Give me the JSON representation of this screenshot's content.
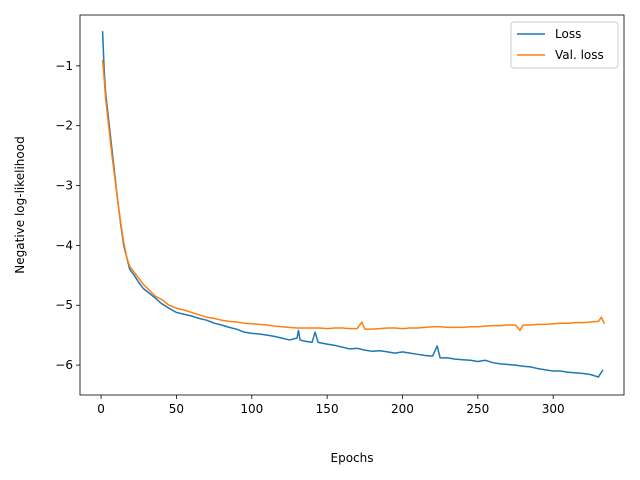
{
  "chart_data": {
    "type": "line",
    "xlabel": "Epochs",
    "ylabel": "Negative log-likelihood",
    "xlim": [
      -14,
      347
    ],
    "ylim": [
      -6.5,
      -0.15
    ],
    "xticks": [
      0,
      50,
      100,
      150,
      200,
      250,
      300
    ],
    "yticks": [
      -6,
      -5,
      -4,
      -3,
      -2,
      -1
    ],
    "grid": false,
    "legend_position": "top-right",
    "series": [
      {
        "name": "Loss",
        "color": "#1f77b4",
        "points": [
          [
            1,
            -0.42
          ],
          [
            2,
            -1.05
          ],
          [
            3,
            -1.45
          ],
          [
            5,
            -1.9
          ],
          [
            7,
            -2.35
          ],
          [
            9,
            -2.8
          ],
          [
            11,
            -3.25
          ],
          [
            13,
            -3.65
          ],
          [
            15,
            -4.0
          ],
          [
            17,
            -4.2
          ],
          [
            19,
            -4.4
          ],
          [
            22,
            -4.5
          ],
          [
            25,
            -4.62
          ],
          [
            28,
            -4.72
          ],
          [
            32,
            -4.8
          ],
          [
            36,
            -4.88
          ],
          [
            40,
            -4.97
          ],
          [
            45,
            -5.05
          ],
          [
            50,
            -5.12
          ],
          [
            55,
            -5.15
          ],
          [
            60,
            -5.18
          ],
          [
            65,
            -5.22
          ],
          [
            70,
            -5.25
          ],
          [
            75,
            -5.3
          ],
          [
            80,
            -5.33
          ],
          [
            85,
            -5.37
          ],
          [
            90,
            -5.4
          ],
          [
            95,
            -5.45
          ],
          [
            100,
            -5.47
          ],
          [
            105,
            -5.48
          ],
          [
            110,
            -5.5
          ],
          [
            115,
            -5.52
          ],
          [
            120,
            -5.55
          ],
          [
            125,
            -5.58
          ],
          [
            130,
            -5.55
          ],
          [
            131,
            -5.42
          ],
          [
            132,
            -5.58
          ],
          [
            135,
            -5.6
          ],
          [
            140,
            -5.62
          ],
          [
            142,
            -5.45
          ],
          [
            144,
            -5.62
          ],
          [
            150,
            -5.65
          ],
          [
            155,
            -5.67
          ],
          [
            160,
            -5.7
          ],
          [
            165,
            -5.73
          ],
          [
            170,
            -5.72
          ],
          [
            175,
            -5.75
          ],
          [
            180,
            -5.77
          ],
          [
            185,
            -5.76
          ],
          [
            190,
            -5.78
          ],
          [
            195,
            -5.8
          ],
          [
            200,
            -5.78
          ],
          [
            205,
            -5.8
          ],
          [
            210,
            -5.82
          ],
          [
            215,
            -5.84
          ],
          [
            220,
            -5.85
          ],
          [
            223,
            -5.68
          ],
          [
            225,
            -5.88
          ],
          [
            230,
            -5.88
          ],
          [
            235,
            -5.9
          ],
          [
            240,
            -5.91
          ],
          [
            245,
            -5.92
          ],
          [
            250,
            -5.94
          ],
          [
            255,
            -5.92
          ],
          [
            260,
            -5.96
          ],
          [
            265,
            -5.98
          ],
          [
            270,
            -5.99
          ],
          [
            275,
            -6.0
          ],
          [
            280,
            -6.02
          ],
          [
            285,
            -6.03
          ],
          [
            290,
            -6.06
          ],
          [
            295,
            -6.08
          ],
          [
            300,
            -6.1
          ],
          [
            305,
            -6.1
          ],
          [
            310,
            -6.12
          ],
          [
            315,
            -6.13
          ],
          [
            320,
            -6.14
          ],
          [
            325,
            -6.16
          ],
          [
            330,
            -6.2
          ],
          [
            333,
            -6.08
          ]
        ]
      },
      {
        "name": "Val. loss",
        "color": "#ff7f0e",
        "points": [
          [
            1,
            -0.9
          ],
          [
            2,
            -1.2
          ],
          [
            3,
            -1.55
          ],
          [
            5,
            -2.0
          ],
          [
            7,
            -2.45
          ],
          [
            9,
            -2.85
          ],
          [
            11,
            -3.25
          ],
          [
            13,
            -3.62
          ],
          [
            15,
            -3.95
          ],
          [
            17,
            -4.2
          ],
          [
            19,
            -4.35
          ],
          [
            22,
            -4.45
          ],
          [
            25,
            -4.55
          ],
          [
            28,
            -4.65
          ],
          [
            32,
            -4.75
          ],
          [
            36,
            -4.85
          ],
          [
            40,
            -4.9
          ],
          [
            45,
            -5.0
          ],
          [
            50,
            -5.05
          ],
          [
            55,
            -5.08
          ],
          [
            60,
            -5.12
          ],
          [
            65,
            -5.16
          ],
          [
            70,
            -5.2
          ],
          [
            75,
            -5.22
          ],
          [
            80,
            -5.25
          ],
          [
            85,
            -5.27
          ],
          [
            90,
            -5.28
          ],
          [
            95,
            -5.3
          ],
          [
            100,
            -5.31
          ],
          [
            105,
            -5.32
          ],
          [
            110,
            -5.33
          ],
          [
            115,
            -5.35
          ],
          [
            120,
            -5.36
          ],
          [
            125,
            -5.37
          ],
          [
            130,
            -5.38
          ],
          [
            135,
            -5.38
          ],
          [
            140,
            -5.38
          ],
          [
            145,
            -5.38
          ],
          [
            150,
            -5.39
          ],
          [
            155,
            -5.38
          ],
          [
            160,
            -5.38
          ],
          [
            165,
            -5.39
          ],
          [
            170,
            -5.39
          ],
          [
            173,
            -5.28
          ],
          [
            175,
            -5.4
          ],
          [
            180,
            -5.4
          ],
          [
            185,
            -5.39
          ],
          [
            190,
            -5.38
          ],
          [
            195,
            -5.38
          ],
          [
            200,
            -5.39
          ],
          [
            205,
            -5.38
          ],
          [
            210,
            -5.38
          ],
          [
            215,
            -5.37
          ],
          [
            220,
            -5.36
          ],
          [
            225,
            -5.36
          ],
          [
            230,
            -5.37
          ],
          [
            235,
            -5.37
          ],
          [
            240,
            -5.37
          ],
          [
            245,
            -5.36
          ],
          [
            250,
            -5.36
          ],
          [
            255,
            -5.35
          ],
          [
            260,
            -5.34
          ],
          [
            265,
            -5.34
          ],
          [
            270,
            -5.33
          ],
          [
            275,
            -5.33
          ],
          [
            278,
            -5.42
          ],
          [
            280,
            -5.33
          ],
          [
            285,
            -5.33
          ],
          [
            290,
            -5.32
          ],
          [
            295,
            -5.32
          ],
          [
            300,
            -5.31
          ],
          [
            305,
            -5.3
          ],
          [
            310,
            -5.3
          ],
          [
            315,
            -5.29
          ],
          [
            320,
            -5.29
          ],
          [
            325,
            -5.28
          ],
          [
            330,
            -5.27
          ],
          [
            332,
            -5.2
          ],
          [
            334,
            -5.31
          ]
        ]
      }
    ]
  }
}
